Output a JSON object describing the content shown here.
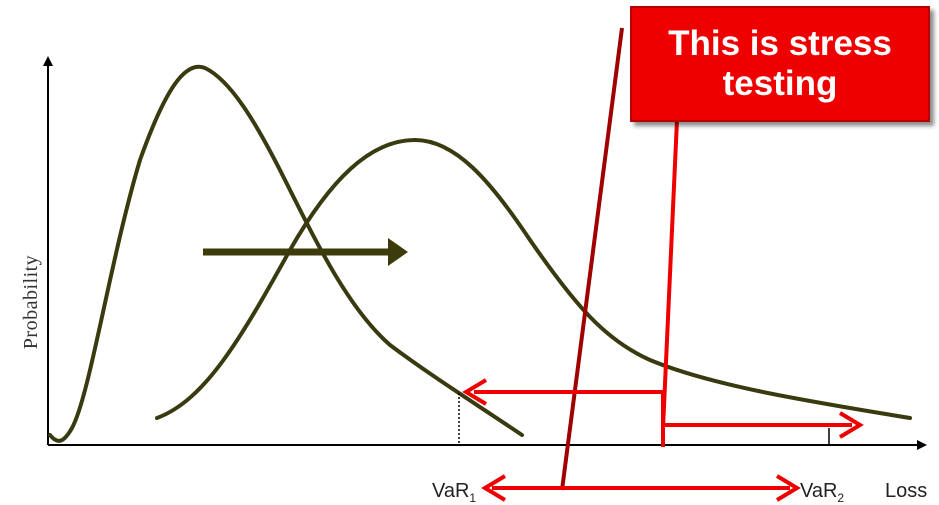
{
  "diagram": {
    "callout_text": "This is stress testing",
    "y_axis_label": "Probability",
    "x_axis_label": "Loss",
    "var1": {
      "base": "VaR",
      "sub": "1"
    },
    "var2": {
      "base": "VaR",
      "sub": "2"
    },
    "colors": {
      "curve": "#3a3a10",
      "arrow_shift": "#3b3b0c",
      "red": "#ee0000",
      "dark_red": "#a00000",
      "axis": "#000000"
    }
  }
}
